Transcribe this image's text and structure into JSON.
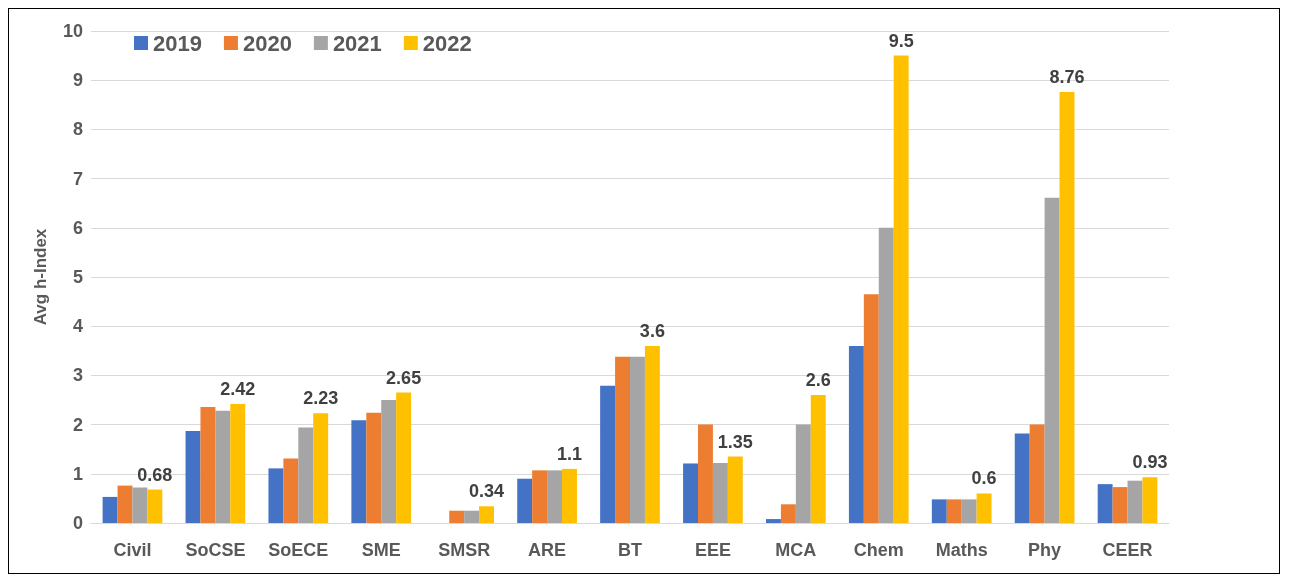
{
  "chart_data": {
    "type": "bar",
    "ylabel": "Avg h-Index",
    "categories": [
      "Civil",
      "SoCSE",
      "SoECE",
      "SME",
      "SMSR",
      "ARE",
      "BT",
      "EEE",
      "MCA",
      "Chem",
      "Maths",
      "Phy",
      "CEER"
    ],
    "series": [
      {
        "name": "2019",
        "color": "#4472c4",
        "values": [
          0.53,
          1.87,
          1.11,
          2.09,
          null,
          0.9,
          2.79,
          1.21,
          0.08,
          3.6,
          0.48,
          1.82,
          0.79
        ]
      },
      {
        "name": "2020",
        "color": "#ed7d31",
        "values": [
          0.76,
          2.36,
          1.31,
          2.24,
          0.25,
          1.07,
          3.38,
          2.0,
          0.38,
          4.65,
          0.48,
          2.0,
          0.73
        ]
      },
      {
        "name": "2021",
        "color": "#a5a5a5",
        "values": [
          0.72,
          2.28,
          1.94,
          2.5,
          0.25,
          1.07,
          3.38,
          1.22,
          2.0,
          6.0,
          0.48,
          6.61,
          0.86
        ]
      },
      {
        "name": "2022",
        "color": "#ffc000",
        "values": [
          0.68,
          2.42,
          2.23,
          2.65,
          0.34,
          1.1,
          3.6,
          1.35,
          2.6,
          9.5,
          0.6,
          8.76,
          0.93
        ],
        "value_labels": [
          "0.68",
          "2.42",
          "2.23",
          "2.65",
          "0.34",
          "1.1",
          "3.6",
          "1.35",
          "2.6",
          "9.5",
          "0.6",
          "8.76",
          "0.93"
        ]
      }
    ],
    "ylim": [
      0,
      10
    ],
    "yticks": [
      0,
      1,
      2,
      3,
      4,
      5,
      6,
      7,
      8,
      9,
      10
    ],
    "grid": "y",
    "legend": "top left"
  }
}
